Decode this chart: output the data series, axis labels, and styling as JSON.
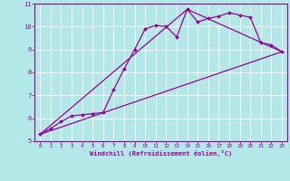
{
  "xlabel": "Windchill (Refroidissement éolien,°C)",
  "bg_color": "#b2e8e8",
  "line_color": "#990099",
  "grid_color": "#ffffff",
  "xlim": [
    -0.5,
    23.5
  ],
  "ylim": [
    5,
    11
  ],
  "xticks": [
    0,
    1,
    2,
    3,
    4,
    5,
    6,
    7,
    8,
    9,
    10,
    11,
    12,
    13,
    14,
    15,
    16,
    17,
    18,
    19,
    20,
    21,
    22,
    23
  ],
  "yticks": [
    5,
    6,
    7,
    8,
    9,
    10,
    11
  ],
  "line1_x": [
    0,
    1,
    2,
    3,
    4,
    5,
    6,
    7,
    8,
    9,
    10,
    11,
    12,
    13,
    14,
    15,
    16,
    17,
    18,
    19,
    20,
    21,
    22,
    23
  ],
  "line1_y": [
    5.3,
    5.55,
    5.85,
    6.1,
    6.15,
    6.2,
    6.25,
    7.25,
    8.15,
    9.0,
    9.9,
    10.05,
    10.0,
    9.55,
    10.75,
    10.2,
    10.35,
    10.45,
    10.6,
    10.5,
    10.4,
    9.3,
    9.2,
    8.9
  ],
  "line2_x": [
    0,
    23
  ],
  "line2_y": [
    5.3,
    8.9
  ],
  "line3_x": [
    0,
    14,
    23
  ],
  "line3_y": [
    5.3,
    10.75,
    8.9
  ]
}
